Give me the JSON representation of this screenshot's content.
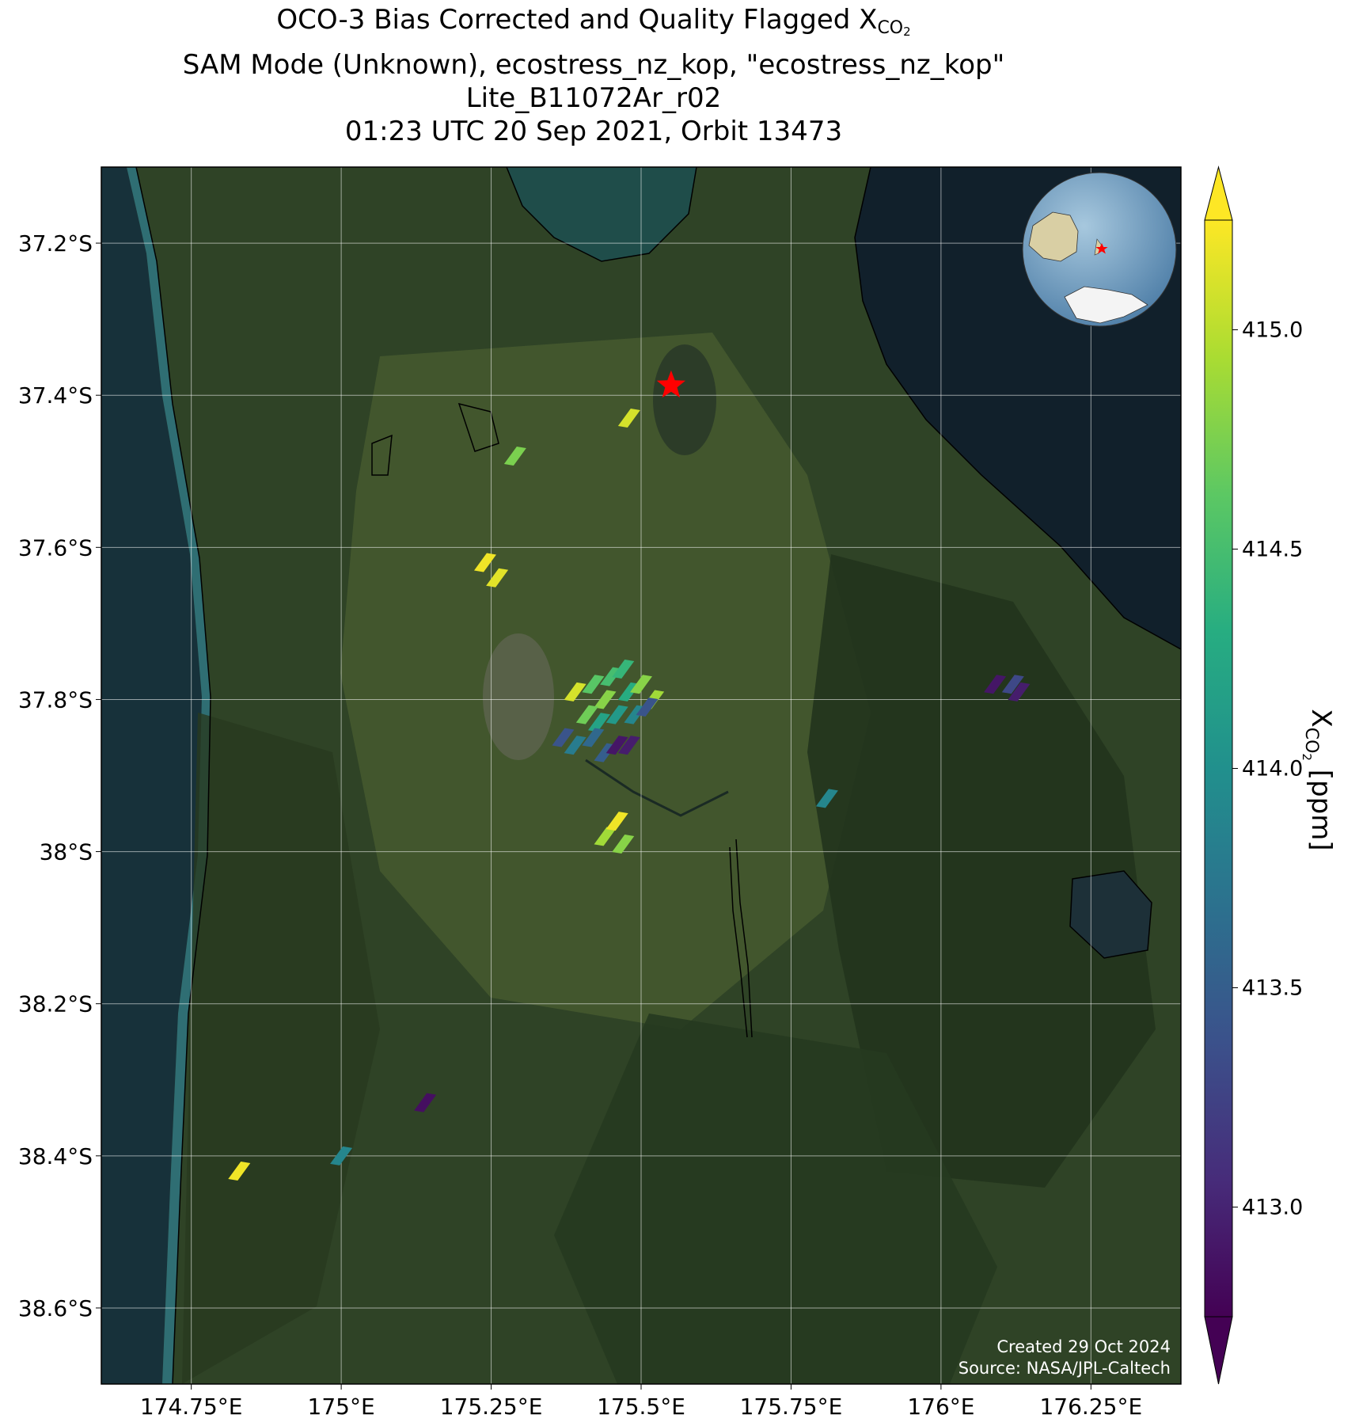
{
  "title": {
    "line1": "OCO-3 Bias Corrected and Quality Flagged X",
    "line1_sub": "CO",
    "line1_subsub": "2",
    "line2": "SAM Mode (Unknown), ecostress_nz_kop, \"ecostress_nz_kop\"",
    "line3": "Lite_B11072Ar_r02",
    "line4": "01:23 UTC 20 Sep 2021, Orbit 13473"
  },
  "map": {
    "lon_range": [
      174.6,
      176.4
    ],
    "lat_range": [
      -38.7,
      -37.1
    ],
    "x_ticks": [
      {
        "value": 174.75,
        "label": "174.75°E"
      },
      {
        "value": 175.0,
        "label": "175°E"
      },
      {
        "value": 175.25,
        "label": "175.25°E"
      },
      {
        "value": 175.5,
        "label": "175.5°E"
      },
      {
        "value": 175.75,
        "label": "175.75°E"
      },
      {
        "value": 176.0,
        "label": "176°E"
      },
      {
        "value": 176.25,
        "label": "176.25°E"
      }
    ],
    "y_ticks": [
      {
        "value": -37.2,
        "label": "37.2°S"
      },
      {
        "value": -37.4,
        "label": "37.4°S"
      },
      {
        "value": -37.6,
        "label": "37.6°S"
      },
      {
        "value": -37.8,
        "label": "37.8°S"
      },
      {
        "value": -38.0,
        "label": "38°S"
      },
      {
        "value": -38.2,
        "label": "38.2°S"
      },
      {
        "value": -38.4,
        "label": "38.4°S"
      },
      {
        "value": -38.6,
        "label": "38.6°S"
      }
    ],
    "gridlines": true,
    "target": {
      "lon": 175.55,
      "lat": -37.387,
      "marker": "red-star"
    },
    "credits": {
      "created": "Created 29 Oct 2024",
      "source": "Source: NASA/JPL-Caltech"
    },
    "inset": {
      "type": "globe",
      "marker": "red-star",
      "position": "top-right"
    }
  },
  "colorbar": {
    "label": "X",
    "label_sub": "CO",
    "label_subsub": "2",
    "label_unit": " [ppm]",
    "colormap": "viridis",
    "range": [
      412.75,
      415.25
    ],
    "extend": "both",
    "ticks": [
      {
        "value": 413.0,
        "label": "413.0"
      },
      {
        "value": 413.5,
        "label": "413.5"
      },
      {
        "value": 414.0,
        "label": "414.0"
      },
      {
        "value": 414.5,
        "label": "414.5"
      },
      {
        "value": 415.0,
        "label": "415.0"
      }
    ]
  },
  "chart_data": {
    "type": "scatter",
    "title": "OCO-3 Bias Corrected and Quality Flagged XCO2",
    "xlabel": "",
    "ylabel": "",
    "colorbar_label": "XCO2 [ppm]",
    "xlim": [
      174.6,
      176.4
    ],
    "ylim": [
      -38.7,
      -37.1
    ],
    "points": [
      {
        "lon": 175.48,
        "lat": -37.43,
        "xco2": 415.1
      },
      {
        "lon": 175.29,
        "lat": -37.48,
        "xco2": 414.75
      },
      {
        "lon": 175.24,
        "lat": -37.62,
        "xco2": 415.2
      },
      {
        "lon": 175.26,
        "lat": -37.64,
        "xco2": 415.15
      },
      {
        "lon": 175.39,
        "lat": -37.79,
        "xco2": 415.1
      },
      {
        "lon": 175.42,
        "lat": -37.78,
        "xco2": 414.6
      },
      {
        "lon": 175.44,
        "lat": -37.8,
        "xco2": 414.8
      },
      {
        "lon": 175.45,
        "lat": -37.77,
        "xco2": 414.5
      },
      {
        "lon": 175.47,
        "lat": -37.76,
        "xco2": 414.4
      },
      {
        "lon": 175.48,
        "lat": -37.79,
        "xco2": 414.3
      },
      {
        "lon": 175.5,
        "lat": -37.78,
        "xco2": 414.8
      },
      {
        "lon": 175.52,
        "lat": -37.8,
        "xco2": 414.9
      },
      {
        "lon": 175.41,
        "lat": -37.82,
        "xco2": 414.7
      },
      {
        "lon": 175.43,
        "lat": -37.83,
        "xco2": 414.2
      },
      {
        "lon": 175.46,
        "lat": -37.82,
        "xco2": 414.1
      },
      {
        "lon": 175.49,
        "lat": -37.82,
        "xco2": 413.9
      },
      {
        "lon": 175.51,
        "lat": -37.81,
        "xco2": 413.4
      },
      {
        "lon": 175.37,
        "lat": -37.85,
        "xco2": 413.4
      },
      {
        "lon": 175.39,
        "lat": -37.86,
        "xco2": 413.8
      },
      {
        "lon": 175.42,
        "lat": -37.85,
        "xco2": 413.6
      },
      {
        "lon": 175.44,
        "lat": -37.87,
        "xco2": 413.5
      },
      {
        "lon": 175.46,
        "lat": -37.86,
        "xco2": 412.9
      },
      {
        "lon": 175.48,
        "lat": -37.86,
        "xco2": 412.95
      },
      {
        "lon": 175.44,
        "lat": -37.98,
        "xco2": 414.9
      },
      {
        "lon": 175.46,
        "lat": -37.96,
        "xco2": 415.2
      },
      {
        "lon": 175.47,
        "lat": -37.99,
        "xco2": 414.8
      },
      {
        "lon": 175.81,
        "lat": -37.93,
        "xco2": 413.9
      },
      {
        "lon": 176.09,
        "lat": -37.78,
        "xco2": 412.9
      },
      {
        "lon": 176.12,
        "lat": -37.78,
        "xco2": 413.3
      },
      {
        "lon": 176.13,
        "lat": -37.79,
        "xco2": 412.95
      },
      {
        "lon": 175.14,
        "lat": -38.33,
        "xco2": 412.85
      },
      {
        "lon": 175.0,
        "lat": -38.4,
        "xco2": 413.9
      },
      {
        "lon": 174.83,
        "lat": -38.42,
        "xco2": 415.2
      }
    ]
  }
}
